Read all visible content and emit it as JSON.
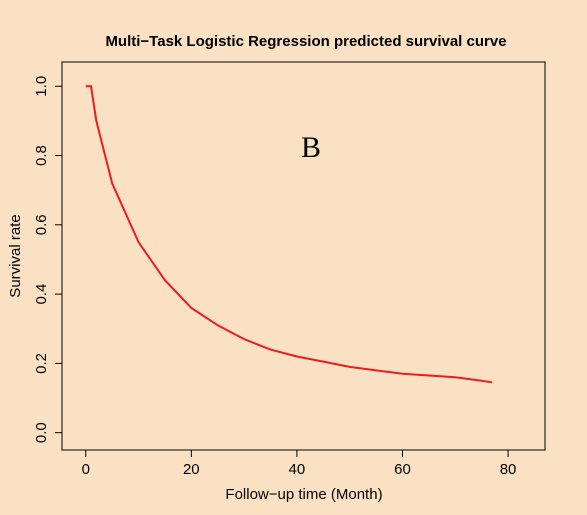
{
  "chart_data": {
    "type": "line",
    "title": "Multi−Task Logistic Regression predicted survival curve",
    "xlabel": "Follow−up time (Month)",
    "ylabel": "Survival rate",
    "annotation": "B",
    "x": [
      0,
      1,
      2,
      5,
      10,
      15,
      20,
      25,
      30,
      35,
      40,
      45,
      50,
      55,
      60,
      65,
      70,
      75,
      77
    ],
    "series": [
      {
        "name": "Survival rate",
        "color": "#ee1c1c",
        "values": [
          1.0,
          1.0,
          0.9,
          0.72,
          0.55,
          0.44,
          0.36,
          0.31,
          0.27,
          0.24,
          0.22,
          0.205,
          0.19,
          0.18,
          0.17,
          0.165,
          0.16,
          0.15,
          0.145
        ]
      }
    ],
    "xlim": [
      -4.5,
      87
    ],
    "ylim": [
      -0.05,
      1.07
    ],
    "xticks": [
      0,
      20,
      40,
      60,
      80
    ],
    "yticks": [
      {
        "value": 0,
        "label": "0.0"
      },
      0.2,
      0.4,
      0.6,
      0.8,
      {
        "value": 1,
        "label": "1.0"
      }
    ],
    "grid": false
  }
}
